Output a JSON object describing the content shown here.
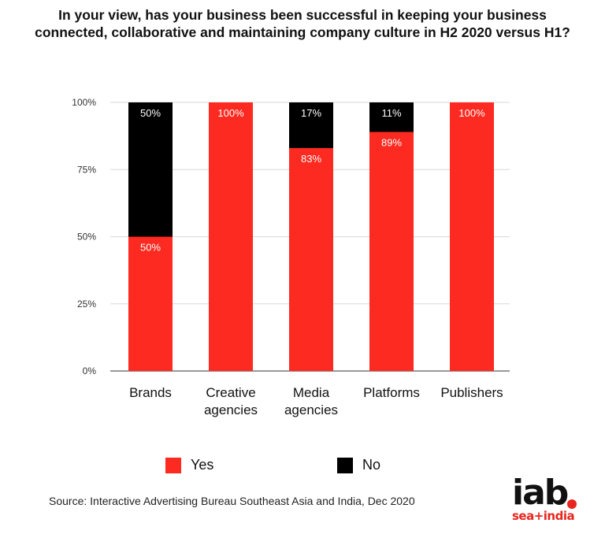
{
  "chart_data": {
    "type": "bar",
    "stacked": true,
    "title": "In your view, has your business been successful in keeping your business connected, collaborative and maintaining company culture in H2 2020 versus H1?",
    "categories": [
      [
        "Brands"
      ],
      [
        "Creative",
        "agencies"
      ],
      [
        "Media",
        "agencies"
      ],
      [
        "Platforms"
      ],
      [
        "Publishers"
      ]
    ],
    "series": [
      {
        "name": "Yes",
        "color": "#fc2a20",
        "values": [
          50,
          100,
          83,
          89,
          100
        ],
        "labels": [
          "50%",
          "100%",
          "83%",
          "89%",
          "100%"
        ]
      },
      {
        "name": "No",
        "color": "#000000",
        "values": [
          50,
          0,
          17,
          11,
          0
        ],
        "labels": [
          "50%",
          "",
          "17%",
          "11%",
          ""
        ]
      }
    ],
    "ylim": [
      0,
      100
    ],
    "yticks": [
      0,
      25,
      50,
      75,
      100
    ],
    "ytick_labels": [
      "0%",
      "25%",
      "50%",
      "75%",
      "100%"
    ],
    "grid": true,
    "legend": "bottom"
  },
  "source": "Source: Interactive Advertising Bureau Southeast Asia and India, Dec 2020",
  "logo": {
    "main": "iab",
    "sub": "sea+india"
  }
}
